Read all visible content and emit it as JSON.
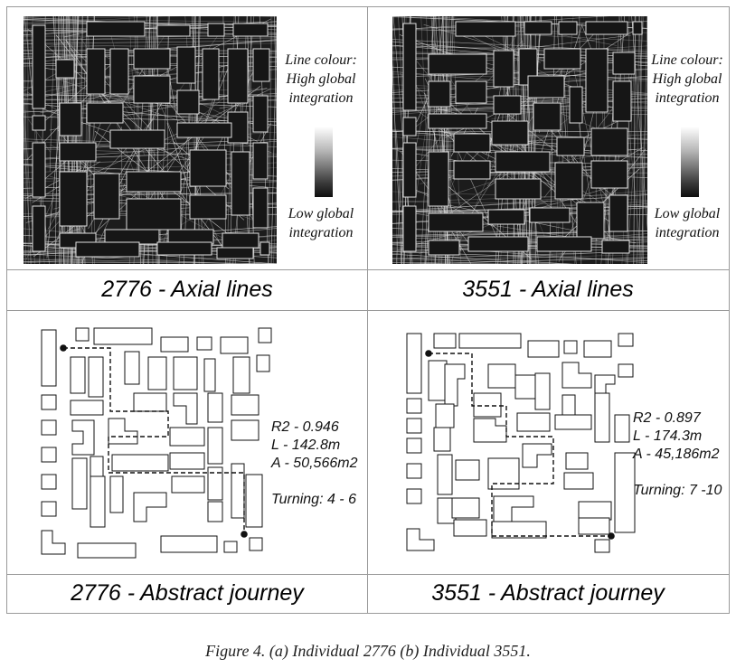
{
  "panels": {
    "top_left": {
      "id": "2776",
      "caption": "2776 - Axial lines"
    },
    "top_right": {
      "id": "3551",
      "caption": "3551 - Axial lines"
    },
    "bottom_left": {
      "caption": "2776 - Abstract journey"
    },
    "bottom_right": {
      "caption": "3551 - Abstract journey"
    }
  },
  "legend": {
    "title_lines": [
      "Line colour:",
      "High global",
      "integration"
    ],
    "low_lines": [
      "Low global",
      "integration"
    ]
  },
  "stats_2776": {
    "r2": "R2 - 0.946",
    "length": "L - 142.8m",
    "area": "A - 50,566m2",
    "turning": "Turning: 4 - 6"
  },
  "stats_3551": {
    "r2": "R2 - 0.897",
    "length": "L - 174.3m",
    "area": "A - 45,186m2",
    "turning": "Turning: 7 -10"
  },
  "figure_caption": "Figure 4.  (a) Individual 2776 (b) Individual 3551.",
  "colors": {
    "map_bg": "#1c1c1c",
    "axial_line": "#d8d8d8",
    "border": "#9a9a9a"
  },
  "icons": [
    "gradient-scale-bar",
    "journey-start-dot",
    "journey-end-dot"
  ]
}
